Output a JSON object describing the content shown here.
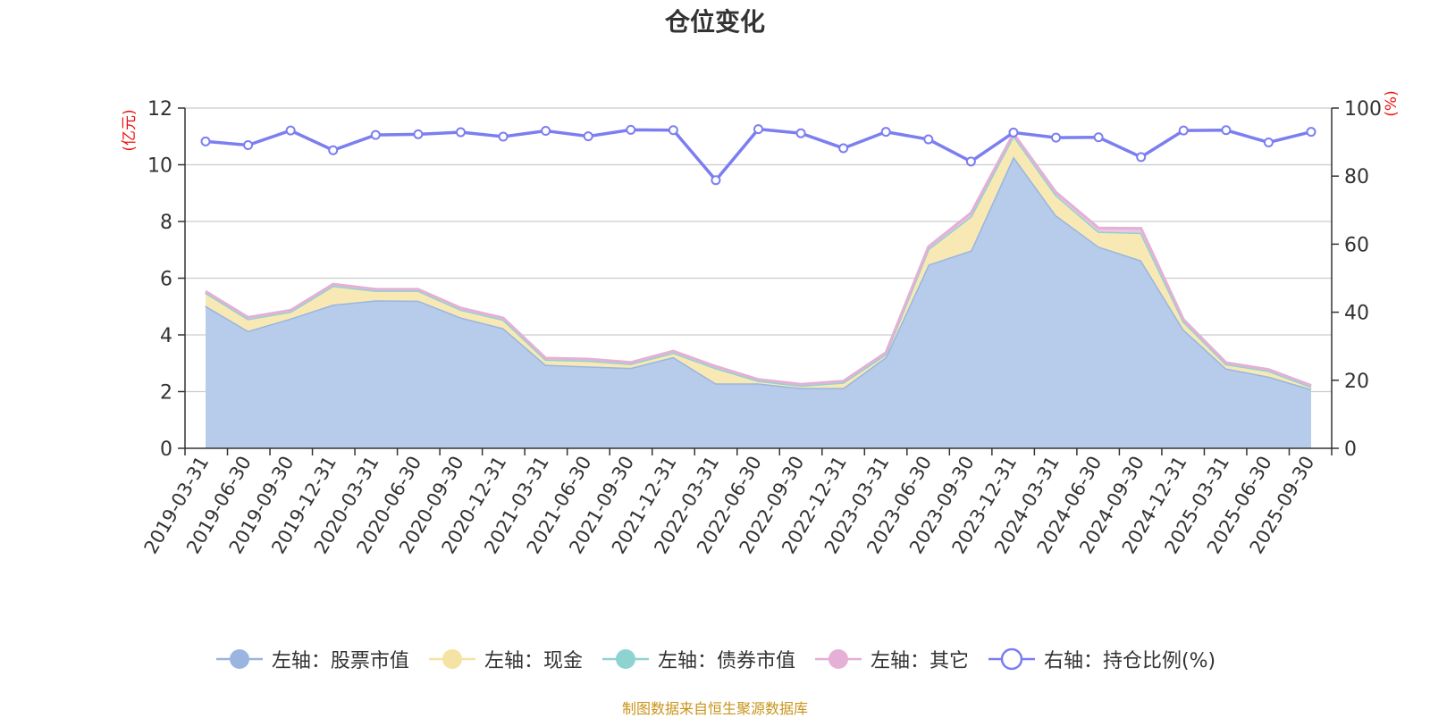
{
  "title": "仓位变化",
  "source_note": "制图数据来自恒生聚源数据库",
  "chart_data": {
    "type": "area",
    "title": "仓位变化",
    "categories": [
      "2019-03-31",
      "2019-06-30",
      "2019-09-30",
      "2019-12-31",
      "2020-03-31",
      "2020-06-30",
      "2020-09-30",
      "2020-12-31",
      "2021-03-31",
      "2021-06-30",
      "2021-09-30",
      "2021-12-31",
      "2022-03-31",
      "2022-06-30",
      "2022-09-30",
      "2022-12-31",
      "2023-03-31",
      "2023-06-30",
      "2023-09-30",
      "2023-12-31",
      "2024-03-31",
      "2024-06-30",
      "2024-09-30",
      "2024-12-31",
      "2025-03-31",
      "2025-06-30",
      "2025-09-30"
    ],
    "y_left": {
      "label": "(亿元)",
      "min": 0,
      "max": 12,
      "ticks": [
        0,
        2,
        4,
        6,
        8,
        10,
        12
      ]
    },
    "y_right": {
      "label": "(%)",
      "min": 0,
      "max": 100,
      "ticks": [
        0,
        20,
        40,
        60,
        80,
        100
      ]
    },
    "grid": true,
    "legend_position": "bottom",
    "series": [
      {
        "name": "左轴：股票市值",
        "axis": "left",
        "kind": "area",
        "color": "#9ab5e0",
        "fill": "#b7cbea",
        "values": [
          5.03,
          4.14,
          4.58,
          5.07,
          5.22,
          5.21,
          4.62,
          4.24,
          2.95,
          2.89,
          2.84,
          3.22,
          2.29,
          2.29,
          2.13,
          2.13,
          3.22,
          6.48,
          6.98,
          10.29,
          8.22,
          7.12,
          6.63,
          4.19,
          2.82,
          2.53,
          2.09
        ]
      },
      {
        "name": "左轴：现金",
        "axis": "left",
        "kind": "area",
        "color": "#f5e3a3",
        "fill": "#f8e9b4",
        "values": [
          0.46,
          0.42,
          0.24,
          0.66,
          0.34,
          0.35,
          0.27,
          0.3,
          0.18,
          0.2,
          0.14,
          0.15,
          0.54,
          0.09,
          0.08,
          0.19,
          0.1,
          0.55,
          1.2,
          0.74,
          0.71,
          0.52,
          0.97,
          0.28,
          0.15,
          0.2,
          0.08
        ]
      },
      {
        "name": "左轴：债券市值",
        "axis": "left",
        "kind": "area",
        "color": "#8fd3d1",
        "fill": "#a7dedc",
        "values": [
          0,
          0,
          0,
          0,
          0,
          0,
          0,
          0,
          0,
          0,
          0,
          0,
          0,
          0,
          0,
          0,
          0,
          0,
          0,
          0,
          0,
          0,
          0,
          0,
          0,
          0,
          0
        ]
      },
      {
        "name": "左轴：其它",
        "axis": "left",
        "kind": "area",
        "color": "#e4b0d6",
        "fill": "#edc4e2",
        "values": [
          0.05,
          0.06,
          0.05,
          0.06,
          0.05,
          0.05,
          0.06,
          0.06,
          0.05,
          0.06,
          0.05,
          0.06,
          0.06,
          0.05,
          0.05,
          0.05,
          0.06,
          0.08,
          0.12,
          0.07,
          0.1,
          0.13,
          0.16,
          0.07,
          0.05,
          0.05,
          0.05
        ]
      },
      {
        "name": "右轴：持仓比例(%)",
        "axis": "right",
        "kind": "line",
        "color": "#7b7ef0",
        "values": [
          90.2,
          89.1,
          93.4,
          87.6,
          92.1,
          92.3,
          92.9,
          91.6,
          93.3,
          91.7,
          93.6,
          93.5,
          78.8,
          93.8,
          92.6,
          88.2,
          93.0,
          90.8,
          84.3,
          92.8,
          91.3,
          91.4,
          85.6,
          93.4,
          93.5,
          89.9,
          93.0
        ]
      }
    ]
  }
}
